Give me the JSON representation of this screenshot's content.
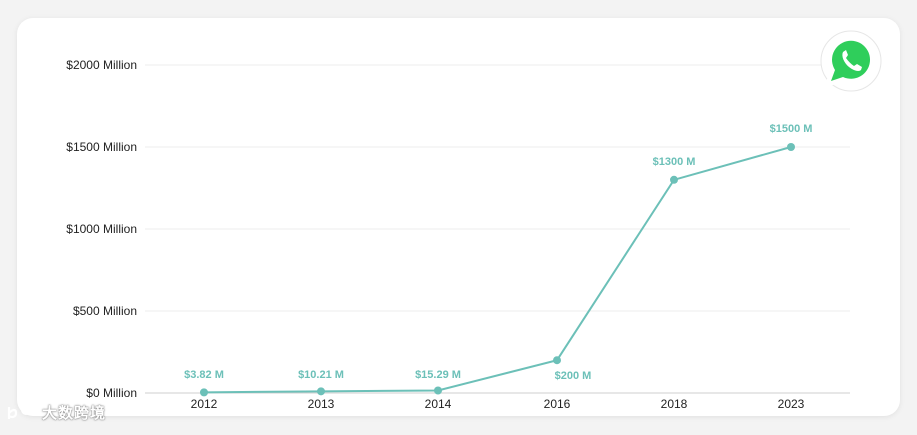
{
  "chart_data": {
    "type": "line",
    "title": "",
    "xlabel": "",
    "ylabel": "",
    "categories": [
      "2012",
      "2013",
      "2014",
      "2016",
      "2018",
      "2023"
    ],
    "series": [
      {
        "values": [
          3.82,
          10.21,
          15.29,
          200,
          1300,
          1500
        ],
        "labels": [
          "$3.82 M",
          "$10.21 M",
          "$15.29 M",
          "$200 M",
          "$1300 M",
          "$1500 M"
        ],
        "color": "#6cc0b8"
      }
    ],
    "ylim": [
      0,
      2000
    ],
    "yticks": [
      0,
      500,
      1000,
      1500,
      2000
    ],
    "ytick_labels": [
      "$0 Million",
      "$500 Million",
      "$1000 Million",
      "$1500 Million",
      "$2000 Million"
    ],
    "grid": true,
    "legend": "none"
  },
  "logo": {
    "icon": "whatsapp-icon",
    "color": "#25d366"
  },
  "watermark": {
    "text": "大数跨境"
  }
}
